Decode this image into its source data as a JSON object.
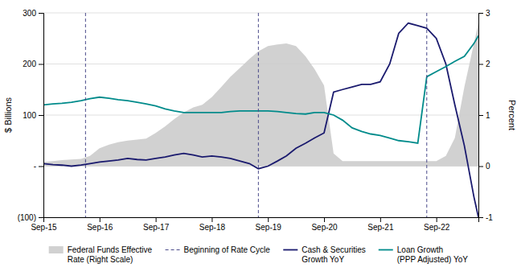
{
  "chart_data": {
    "type": "line",
    "ylabel": "$ Billions",
    "y2label": "Percent",
    "xlim": [
      2015.0,
      2022.75
    ],
    "xticks": [
      {
        "value": 2015.0,
        "label": "Sep-15"
      },
      {
        "value": 2016.0,
        "label": "Sep-16"
      },
      {
        "value": 2017.0,
        "label": "Sep-17"
      },
      {
        "value": 2018.0,
        "label": "Sep-18"
      },
      {
        "value": 2019.0,
        "label": "Sep-19"
      },
      {
        "value": 2020.0,
        "label": "Sep-20"
      },
      {
        "value": 2021.0,
        "label": "Sep-21"
      },
      {
        "value": 2022.0,
        "label": "Sep-22"
      }
    ],
    "ylim": [
      -100,
      300
    ],
    "yticks": [
      {
        "value": -100,
        "label": "(100)"
      },
      {
        "value": 0,
        "label": "-"
      },
      100,
      200,
      300
    ],
    "y2lim": [
      -1,
      3
    ],
    "y2ticks": [
      -1,
      0,
      1,
      2,
      3
    ],
    "grid": true,
    "legend": "bottom",
    "x": [
      2015.0,
      2015.17,
      2015.33,
      2015.5,
      2015.67,
      2015.83,
      2016.0,
      2016.17,
      2016.33,
      2016.5,
      2016.67,
      2016.83,
      2017.0,
      2017.17,
      2017.33,
      2017.5,
      2017.67,
      2017.83,
      2018.0,
      2018.17,
      2018.33,
      2018.5,
      2018.67,
      2018.83,
      2019.0,
      2019.17,
      2019.33,
      2019.5,
      2019.67,
      2019.83,
      2020.0,
      2020.17,
      2020.33,
      2020.5,
      2020.67,
      2020.83,
      2021.0,
      2021.17,
      2021.33,
      2021.5,
      2021.67,
      2021.83,
      2022.0,
      2022.17,
      2022.33,
      2022.5,
      2022.67,
      2022.75
    ],
    "series": [
      {
        "name": "Federal Funds Effective\nRate (Right Scale)",
        "type": "area",
        "axis": "y2",
        "color": "#cccccc",
        "values": [
          0.08,
          0.1,
          0.12,
          0.13,
          0.14,
          0.2,
          0.35,
          0.42,
          0.47,
          0.5,
          0.52,
          0.54,
          0.65,
          0.78,
          0.92,
          1.05,
          1.15,
          1.2,
          1.35,
          1.55,
          1.75,
          1.92,
          2.1,
          2.25,
          2.35,
          2.38,
          2.4,
          2.35,
          2.15,
          1.9,
          1.58,
          0.25,
          0.1,
          0.1,
          0.1,
          0.1,
          0.1,
          0.1,
          0.1,
          0.1,
          0.1,
          0.1,
          0.1,
          0.2,
          0.55,
          1.55,
          2.4,
          2.8
        ]
      },
      {
        "name": "Cash & Securities\nGrowth YoY",
        "type": "line",
        "color": "#1a1a6e",
        "values": [
          5,
          3,
          2,
          0,
          2,
          5,
          8,
          10,
          12,
          15,
          13,
          12,
          15,
          18,
          22,
          25,
          22,
          18,
          20,
          18,
          15,
          10,
          5,
          -5,
          0,
          10,
          20,
          35,
          45,
          55,
          65,
          145,
          150,
          155,
          160,
          160,
          165,
          200,
          260,
          280,
          275,
          270,
          250,
          200,
          120,
          40,
          -60,
          -100
        ]
      },
      {
        "name": "Loan Growth\n(PPP Adjusted) YoY",
        "type": "line",
        "axis": "y2",
        "color": "#008b8b",
        "values": [
          1.2,
          1.22,
          1.23,
          1.25,
          1.28,
          1.32,
          1.35,
          1.33,
          1.3,
          1.28,
          1.25,
          1.22,
          1.18,
          1.12,
          1.08,
          1.05,
          1.05,
          1.05,
          1.05,
          1.05,
          1.07,
          1.08,
          1.08,
          1.08,
          1.08,
          1.07,
          1.05,
          1.03,
          1.02,
          1.05,
          1.05,
          1.0,
          0.9,
          0.75,
          0.68,
          0.63,
          0.6,
          0.55,
          0.5,
          0.48,
          0.45,
          1.75,
          1.85,
          1.95,
          2.05,
          2.15,
          2.4,
          2.55
        ]
      }
    ],
    "vlines": {
      "name": "Beginning of Rate Cycle",
      "color": "#4a4a8a",
      "line_style": "dashed",
      "values": [
        2015.75,
        2018.83,
        2021.83
      ]
    }
  }
}
